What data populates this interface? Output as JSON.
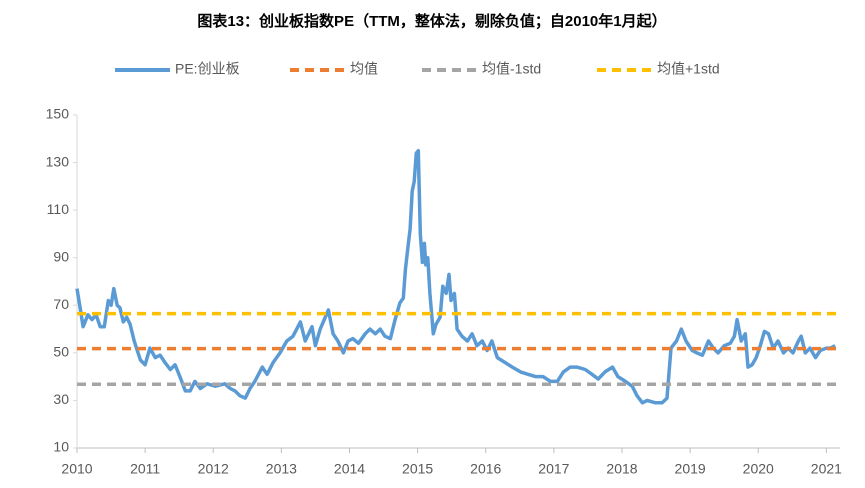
{
  "chart_data": {
    "type": "line",
    "title": "图表13：创业板指数PE（TTM，整体法，剔除负值；自2010年1月起）",
    "xlim": [
      2010,
      2021.2
    ],
    "xticks": [
      2010,
      2011,
      2012,
      2013,
      2014,
      2015,
      2016,
      2017,
      2018,
      2019,
      2020,
      2021
    ],
    "ylim": [
      10,
      150
    ],
    "yticks": [
      10,
      30,
      50,
      70,
      90,
      110,
      130,
      150
    ],
    "grid": false,
    "legend": "top",
    "series": [
      {
        "name": "PE:创业板",
        "color": "#5b9bd5",
        "style": "solid",
        "x": [
          2010.0,
          2010.04,
          2010.09,
          2010.16,
          2010.22,
          2010.28,
          2010.34,
          2010.4,
          2010.46,
          2010.5,
          2010.54,
          2010.59,
          2010.63,
          2010.68,
          2010.73,
          2010.78,
          2010.84,
          2010.93,
          2011.0,
          2011.07,
          2011.15,
          2011.22,
          2011.29,
          2011.37,
          2011.44,
          2011.51,
          2011.59,
          2011.66,
          2011.73,
          2011.81,
          2011.91,
          2012.03,
          2012.17,
          2012.25,
          2012.32,
          2012.39,
          2012.47,
          2012.54,
          2012.61,
          2012.72,
          2012.79,
          2012.88,
          2012.98,
          2013.08,
          2013.17,
          2013.28,
          2013.35,
          2013.45,
          2013.5,
          2013.57,
          2013.69,
          2013.76,
          2013.83,
          2013.91,
          2013.98,
          2014.05,
          2014.13,
          2014.23,
          2014.3,
          2014.38,
          2014.45,
          2014.52,
          2014.6,
          2014.67,
          2014.74,
          2014.79,
          2014.82,
          2014.86,
          2014.89,
          2014.92,
          2014.95,
          2014.98,
          2015.01,
          2015.04,
          2015.07,
          2015.1,
          2015.12,
          2015.15,
          2015.18,
          2015.23,
          2015.27,
          2015.33,
          2015.37,
          2015.42,
          2015.46,
          2015.49,
          2015.54,
          2015.58,
          2015.65,
          2015.73,
          2015.8,
          2015.87,
          2015.95,
          2016.02,
          2016.09,
          2016.17,
          2016.28,
          2016.39,
          2016.51,
          2016.62,
          2016.73,
          2016.84,
          2016.95,
          2017.05,
          2017.14,
          2017.24,
          2017.34,
          2017.46,
          2017.56,
          2017.65,
          2017.75,
          2017.86,
          2017.94,
          2018.05,
          2018.15,
          2018.22,
          2018.3,
          2018.37,
          2018.49,
          2018.59,
          2018.66,
          2018.72,
          2018.8,
          2018.87,
          2018.94,
          2019.03,
          2019.1,
          2019.18,
          2019.27,
          2019.34,
          2019.41,
          2019.5,
          2019.59,
          2019.65,
          2019.69,
          2019.75,
          2019.81,
          2019.85,
          2019.91,
          2019.97,
          2020.03,
          2020.09,
          2020.15,
          2020.22,
          2020.29,
          2020.37,
          2020.44,
          2020.51,
          2020.59,
          2020.63,
          2020.69,
          2020.76,
          2020.84,
          2020.91,
          2021.0,
          2021.06,
          2021.13
        ],
        "values": [
          77,
          70,
          61,
          66,
          64,
          66,
          61,
          61,
          72,
          70,
          77,
          70,
          69,
          63,
          65,
          62,
          55,
          47,
          45,
          52,
          48,
          49,
          46,
          43,
          45,
          40,
          34,
          34,
          38,
          35,
          37,
          36,
          37,
          35,
          34,
          32,
          31,
          35,
          38,
          44,
          41,
          46,
          50,
          55,
          57,
          63,
          55,
          61,
          53,
          60,
          68,
          58,
          55,
          50,
          55,
          56,
          54,
          58,
          60,
          58,
          60,
          57,
          56,
          64,
          71,
          73,
          85,
          95,
          102,
          118,
          122,
          134,
          135,
          100,
          88,
          96,
          87,
          90,
          75,
          58,
          62,
          65,
          78,
          75,
          83,
          72,
          75,
          60,
          57,
          55,
          58,
          53,
          55,
          51,
          55,
          48,
          46,
          44,
          42,
          41,
          40,
          40,
          38,
          38,
          42,
          44,
          44,
          43,
          41,
          39,
          42,
          44,
          40,
          38,
          36,
          32,
          29,
          30,
          29,
          29,
          31,
          52,
          55,
          60,
          55,
          51,
          50,
          49,
          55,
          52,
          50,
          53,
          54,
          57,
          64,
          55,
          58,
          44,
          45,
          48,
          53,
          59,
          58,
          52,
          55,
          50,
          52,
          50,
          55,
          57,
          50,
          52,
          48,
          51,
          52,
          52,
          53
        ]
      },
      {
        "name": "均值",
        "color": "#ed7d31",
        "style": "dashed",
        "x": [
          2010,
          2021.2
        ],
        "values": [
          51.8,
          51.8
        ]
      },
      {
        "name": "均值-1std",
        "color": "#a5a5a5",
        "style": "dashed",
        "x": [
          2010,
          2021.2
        ],
        "values": [
          36.8,
          36.8
        ]
      },
      {
        "name": "均值+1std",
        "color": "#ffc000",
        "style": "dashed",
        "x": [
          2010,
          2021.2
        ],
        "values": [
          66.5,
          66.5
        ]
      }
    ]
  }
}
